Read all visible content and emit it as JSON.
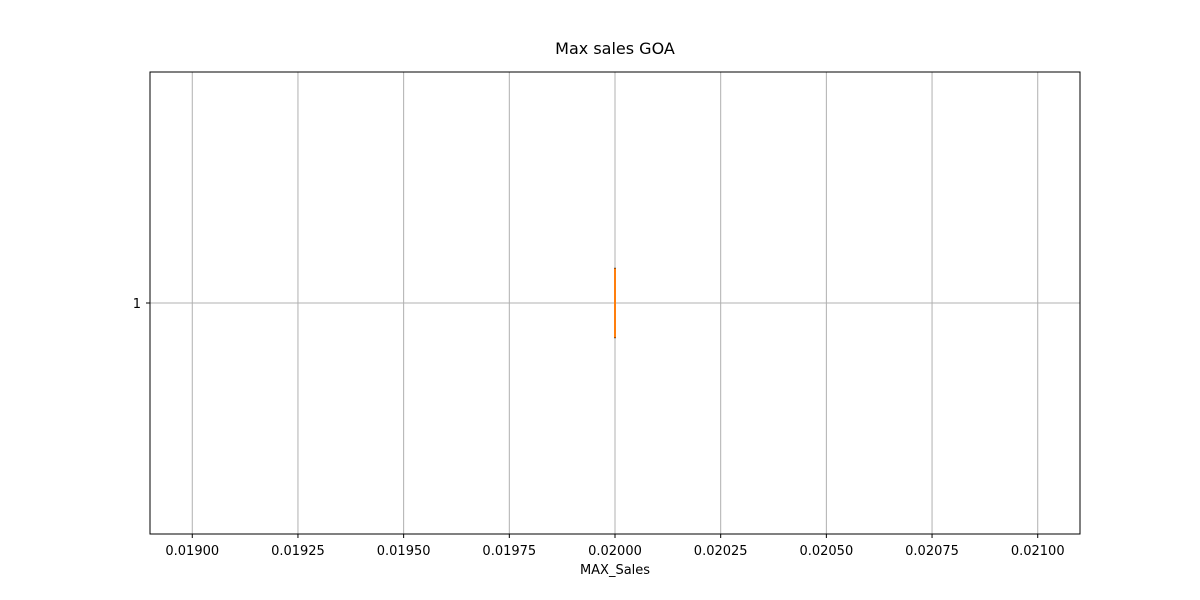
{
  "chart_data": {
    "type": "box",
    "orientation": "horizontal",
    "title": "Max sales GOA",
    "xlabel": "MAX_Sales",
    "ylabel": "",
    "xlim": [
      0.0189,
      0.0211
    ],
    "x_ticks": [
      0.019,
      0.01925,
      0.0195,
      0.01975,
      0.02,
      0.02025,
      0.0205,
      0.02075,
      0.021
    ],
    "x_tick_labels": [
      "0.01900",
      "0.01925",
      "0.01950",
      "0.01975",
      "0.02000",
      "0.02025",
      "0.02050",
      "0.02075",
      "0.02100"
    ],
    "y_ticks": [
      1
    ],
    "y_tick_labels": [
      "1"
    ],
    "grid": true,
    "boxes": [
      {
        "position": 1,
        "min": 0.02,
        "q1": 0.02,
        "median": 0.02,
        "q3": 0.02,
        "max": 0.02
      }
    ],
    "colors": {
      "box": "#000000",
      "median": "#ff7f0e",
      "grid": "#b0b0b0",
      "axes": "#000000"
    }
  }
}
